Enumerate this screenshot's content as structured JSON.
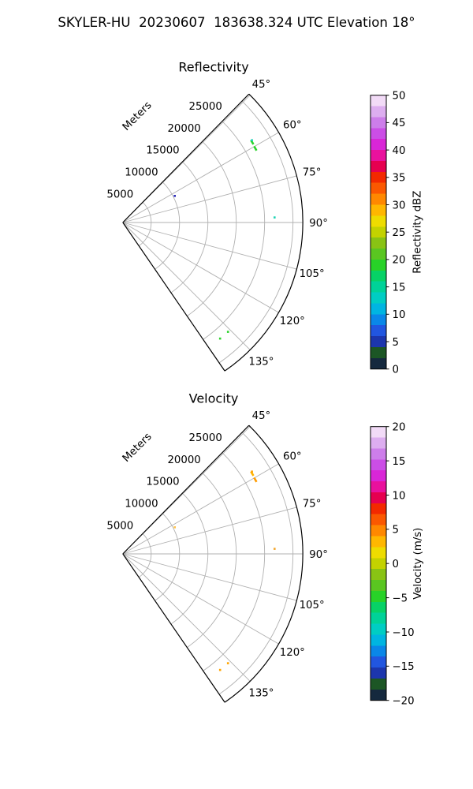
{
  "header": {
    "title": "SKYLER-HU  20230607  183638.324 UTC Elevation 18°"
  },
  "colormap": {
    "name": "HomeyerRainbow",
    "stops": [
      [
        "0%",
        "#141c5f"
      ],
      [
        "2%",
        "#15293e"
      ],
      [
        "4%",
        "#15472b"
      ],
      [
        "6.5%",
        "#1e5a23"
      ],
      [
        "8.5%",
        "#16337d"
      ],
      [
        "11%",
        "#2038cd"
      ],
      [
        "14%",
        "#2156e0"
      ],
      [
        "17%",
        "#0f7ae6"
      ],
      [
        "20%",
        "#00a0eb"
      ],
      [
        "23%",
        "#00bfdc"
      ],
      [
        "26%",
        "#00cdc3"
      ],
      [
        "29%",
        "#00d2a0"
      ],
      [
        "32%",
        "#00d287"
      ],
      [
        "35%",
        "#0ad255"
      ],
      [
        "38%",
        "#28d228"
      ],
      [
        "41%",
        "#50cd23"
      ],
      [
        "44%",
        "#6eb91e"
      ],
      [
        "47%",
        "#96c80f"
      ],
      [
        "50%",
        "#c3d200"
      ],
      [
        "53%",
        "#e6e100"
      ],
      [
        "56%",
        "#ffd200"
      ],
      [
        "59%",
        "#ffaa00"
      ],
      [
        "63%",
        "#ff7d00"
      ],
      [
        "67%",
        "#fa4b00"
      ],
      [
        "71%",
        "#f01e00"
      ],
      [
        "74%",
        "#e60050"
      ],
      [
        "77%",
        "#eb0f87"
      ],
      [
        "80%",
        "#e614c8"
      ],
      [
        "84%",
        "#cd37e6"
      ],
      [
        "88%",
        "#c865e6"
      ],
      [
        "92%",
        "#d296ed"
      ],
      [
        "96%",
        "#e8c6f2"
      ],
      [
        "100%",
        "#fbeffb"
      ]
    ]
  },
  "chart_data": [
    {
      "type": "radar_ppi_sector",
      "title": "Reflectivity",
      "radial_axis_label": "Meters",
      "azimuth_limits_deg": [
        44.5,
        145.5
      ],
      "azimuth_ticks_deg": [
        45,
        60,
        75,
        90,
        105,
        120,
        135
      ],
      "azimuth_tick_labels": [
        "45°",
        "60°",
        "75°",
        "90°",
        "105°",
        "120°",
        "135°"
      ],
      "range_ticks_m": [
        5000,
        10000,
        15000,
        20000,
        25000
      ],
      "range_tick_labels": [
        "5000",
        "10000",
        "15000",
        "20000",
        "25000"
      ],
      "range_grid_m": [
        5000,
        10000,
        15000,
        20000,
        25000,
        30000
      ],
      "max_range_m": 31730,
      "grid_color": "#b0b0b0",
      "colorbar": {
        "label": "Reflectivity dBZ",
        "min": 0,
        "max": 50,
        "tick_labels": [
          "0",
          "5",
          "10",
          "15",
          "20",
          "25",
          "30",
          "35",
          "40",
          "45",
          "50"
        ]
      },
      "points": [
        {
          "az_deg": 58.2,
          "range_m": 26830,
          "color": "#2bd32b",
          "shape": "dash"
        },
        {
          "az_deg": 57.5,
          "range_m": 26990,
          "color": "#19d2b9",
          "shape": "dot"
        },
        {
          "az_deg": 60.8,
          "range_m": 26760,
          "color": "#2bd32b",
          "shape": "dash"
        },
        {
          "az_deg": 88.1,
          "range_m": 26770,
          "color": "#1fd2b4",
          "shape": "dot"
        },
        {
          "az_deg": 62.9,
          "range_m": 10290,
          "color": "#2a2ab9",
          "shape": "dot"
        },
        {
          "az_deg": 136.1,
          "range_m": 26740,
          "color": "#2bd32b",
          "shape": "dot"
        },
        {
          "az_deg": 140.0,
          "range_m": 26690,
          "color": "#2bd32b",
          "shape": "dot"
        }
      ]
    },
    {
      "type": "radar_ppi_sector",
      "title": "Velocity",
      "radial_axis_label": "Meters",
      "azimuth_limits_deg": [
        44.5,
        145.5
      ],
      "azimuth_ticks_deg": [
        45,
        60,
        75,
        90,
        105,
        120,
        135
      ],
      "azimuth_tick_labels": [
        "45°",
        "60°",
        "75°",
        "90°",
        "105°",
        "120°",
        "135°"
      ],
      "range_ticks_m": [
        5000,
        10000,
        15000,
        20000,
        25000
      ],
      "range_tick_labels": [
        "5000",
        "10000",
        "15000",
        "20000",
        "25000"
      ],
      "range_grid_m": [
        5000,
        10000,
        15000,
        20000,
        25000,
        30000
      ],
      "max_range_m": 31730,
      "grid_color": "#b0b0b0",
      "colorbar": {
        "label": "Velocity (m/s)",
        "min": -20,
        "max": 20,
        "tick_labels": [
          "−20",
          "−15",
          "−10",
          "−5",
          "0",
          "5",
          "10",
          "15",
          "20"
        ]
      },
      "points": [
        {
          "az_deg": 58.2,
          "range_m": 26830,
          "color": "#ffb400",
          "shape": "dash"
        },
        {
          "az_deg": 57.5,
          "range_m": 26990,
          "color": "#ffa200",
          "shape": "dot"
        },
        {
          "az_deg": 60.8,
          "range_m": 26760,
          "color": "#ff9b00",
          "shape": "dash"
        },
        {
          "az_deg": 88.1,
          "range_m": 26770,
          "color": "#f2a52c",
          "shape": "dot"
        },
        {
          "az_deg": 62.9,
          "range_m": 10290,
          "color": "#ffc34d",
          "shape": "dot"
        },
        {
          "az_deg": 136.1,
          "range_m": 26740,
          "color": "#ffa500",
          "shape": "dot"
        },
        {
          "az_deg": 140.0,
          "range_m": 26690,
          "color": "#ffa500",
          "shape": "dot"
        }
      ]
    }
  ]
}
